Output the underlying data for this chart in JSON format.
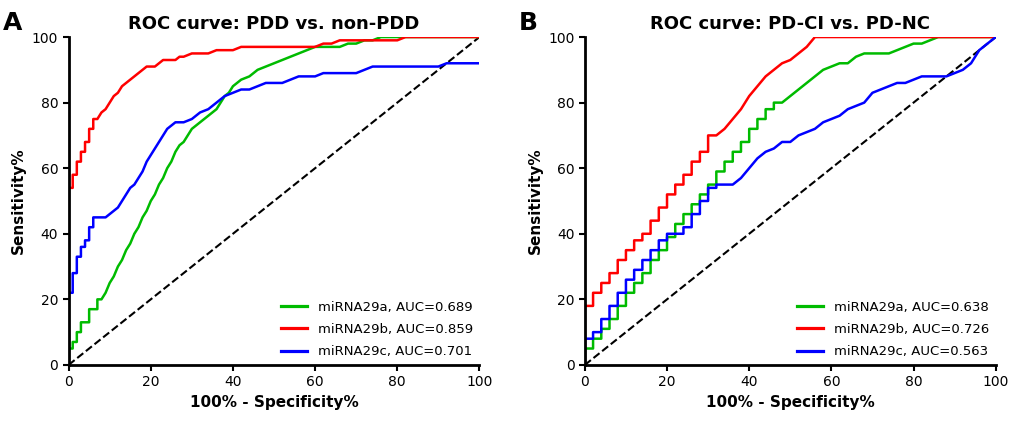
{
  "panel_A": {
    "title": "ROC curve: PDD vs. non-PDD",
    "label": "A",
    "legend": [
      {
        "label": "miRNA29a, AUC=0.689",
        "color": "#00bb00"
      },
      {
        "label": "miRNA29b, AUC=0.859",
        "color": "#ff0000"
      },
      {
        "label": "miRNA29c, AUC=0.701",
        "color": "#0000ff"
      }
    ],
    "curves": {
      "miRNA29a": {
        "color": "#00bb00",
        "x": [
          0,
          0,
          1,
          1,
          2,
          2,
          3,
          3,
          4,
          5,
          5,
          6,
          7,
          7,
          8,
          9,
          10,
          11,
          12,
          13,
          14,
          15,
          16,
          17,
          18,
          19,
          20,
          21,
          22,
          23,
          24,
          25,
          26,
          27,
          28,
          29,
          30,
          31,
          32,
          33,
          34,
          35,
          36,
          37,
          38,
          39,
          40,
          42,
          44,
          46,
          48,
          50,
          52,
          54,
          56,
          58,
          60,
          62,
          64,
          66,
          68,
          70,
          72,
          74,
          76,
          78,
          80,
          82,
          84,
          86,
          88,
          90,
          92,
          94,
          96,
          98,
          100
        ],
        "y": [
          0,
          5,
          5,
          7,
          7,
          10,
          10,
          13,
          13,
          13,
          17,
          17,
          17,
          20,
          20,
          22,
          25,
          27,
          30,
          32,
          35,
          37,
          40,
          42,
          45,
          47,
          50,
          52,
          55,
          57,
          60,
          62,
          65,
          67,
          68,
          70,
          72,
          73,
          74,
          75,
          76,
          77,
          78,
          80,
          82,
          83,
          85,
          87,
          88,
          90,
          91,
          92,
          93,
          94,
          95,
          96,
          97,
          97,
          97,
          97,
          98,
          98,
          99,
          99,
          100,
          100,
          100,
          100,
          100,
          100,
          100,
          100,
          100,
          100,
          100,
          100,
          100
        ]
      },
      "miRNA29b": {
        "color": "#ff0000",
        "x": [
          0,
          0,
          1,
          1,
          2,
          2,
          3,
          3,
          4,
          4,
          5,
          5,
          6,
          6,
          7,
          8,
          9,
          10,
          11,
          12,
          13,
          14,
          15,
          16,
          17,
          18,
          19,
          20,
          21,
          22,
          23,
          24,
          25,
          26,
          27,
          28,
          30,
          32,
          34,
          36,
          38,
          40,
          42,
          44,
          46,
          48,
          50,
          52,
          54,
          56,
          58,
          60,
          62,
          64,
          66,
          68,
          70,
          72,
          74,
          76,
          78,
          80,
          82,
          84,
          86,
          88,
          90,
          92,
          94,
          96,
          98,
          100
        ],
        "y": [
          0,
          54,
          54,
          58,
          58,
          62,
          62,
          65,
          65,
          68,
          68,
          72,
          72,
          75,
          75,
          77,
          78,
          80,
          82,
          83,
          85,
          86,
          87,
          88,
          89,
          90,
          91,
          91,
          91,
          92,
          93,
          93,
          93,
          93,
          94,
          94,
          95,
          95,
          95,
          96,
          96,
          96,
          97,
          97,
          97,
          97,
          97,
          97,
          97,
          97,
          97,
          97,
          98,
          98,
          99,
          99,
          99,
          99,
          99,
          99,
          99,
          99,
          100,
          100,
          100,
          100,
          100,
          100,
          100,
          100,
          100,
          100
        ]
      },
      "miRNA29c": {
        "color": "#0000ff",
        "x": [
          0,
          0,
          1,
          1,
          2,
          2,
          3,
          3,
          4,
          4,
          5,
          5,
          6,
          6,
          7,
          8,
          9,
          10,
          11,
          12,
          13,
          14,
          15,
          16,
          17,
          18,
          19,
          20,
          21,
          22,
          23,
          24,
          25,
          26,
          28,
          30,
          32,
          34,
          36,
          38,
          40,
          42,
          44,
          46,
          48,
          50,
          52,
          54,
          56,
          58,
          60,
          62,
          64,
          66,
          68,
          70,
          72,
          74,
          76,
          78,
          80,
          82,
          84,
          86,
          88,
          90,
          92,
          94,
          96,
          98,
          100
        ],
        "y": [
          0,
          22,
          22,
          28,
          28,
          33,
          33,
          36,
          36,
          38,
          38,
          42,
          42,
          45,
          45,
          45,
          45,
          46,
          47,
          48,
          50,
          52,
          54,
          55,
          57,
          59,
          62,
          64,
          66,
          68,
          70,
          72,
          73,
          74,
          74,
          75,
          77,
          78,
          80,
          82,
          83,
          84,
          84,
          85,
          86,
          86,
          86,
          87,
          88,
          88,
          88,
          89,
          89,
          89,
          89,
          89,
          90,
          91,
          91,
          91,
          91,
          91,
          91,
          91,
          91,
          91,
          92,
          92,
          92,
          92,
          92
        ]
      }
    }
  },
  "panel_B": {
    "title": "ROC curve: PD-CI vs. PD-NC",
    "label": "B",
    "legend": [
      {
        "label": "miRNA29a, AUC=0.638",
        "color": "#00bb00"
      },
      {
        "label": "miRNA29b, AUC=0.726",
        "color": "#ff0000"
      },
      {
        "label": "miRNA29c, AUC=0.563",
        "color": "#0000ff"
      }
    ],
    "curves": {
      "miRNA29a": {
        "color": "#00bb00",
        "x": [
          0,
          0,
          2,
          2,
          4,
          4,
          6,
          6,
          8,
          8,
          10,
          10,
          12,
          12,
          14,
          14,
          16,
          16,
          18,
          18,
          20,
          20,
          22,
          22,
          24,
          24,
          26,
          26,
          28,
          28,
          30,
          30,
          32,
          32,
          34,
          34,
          36,
          36,
          38,
          38,
          40,
          40,
          42,
          42,
          44,
          44,
          46,
          46,
          48,
          50,
          52,
          54,
          56,
          58,
          60,
          62,
          64,
          65,
          66,
          68,
          70,
          72,
          74,
          76,
          78,
          80,
          82,
          84,
          86,
          88,
          90,
          92,
          94,
          96,
          98,
          100
        ],
        "y": [
          0,
          5,
          5,
          8,
          8,
          11,
          11,
          14,
          14,
          18,
          18,
          22,
          22,
          25,
          25,
          28,
          28,
          32,
          32,
          35,
          35,
          39,
          39,
          43,
          43,
          46,
          46,
          49,
          49,
          52,
          52,
          55,
          55,
          59,
          59,
          62,
          62,
          65,
          65,
          68,
          68,
          72,
          72,
          75,
          75,
          78,
          78,
          80,
          80,
          82,
          84,
          86,
          88,
          90,
          91,
          92,
          92,
          93,
          94,
          95,
          95,
          95,
          95,
          96,
          97,
          98,
          98,
          99,
          100,
          100,
          100,
          100,
          100,
          100,
          100,
          100
        ]
      },
      "miRNA29b": {
        "color": "#ff0000",
        "x": [
          0,
          0,
          2,
          2,
          4,
          4,
          6,
          6,
          8,
          8,
          10,
          10,
          12,
          12,
          14,
          14,
          16,
          16,
          18,
          18,
          20,
          20,
          22,
          22,
          24,
          24,
          26,
          26,
          28,
          28,
          30,
          30,
          32,
          34,
          36,
          38,
          40,
          42,
          44,
          46,
          48,
          50,
          52,
          54,
          56,
          58,
          60,
          62,
          64,
          66,
          68,
          70,
          72,
          74,
          76,
          78,
          80,
          82,
          84,
          86,
          88,
          90,
          92,
          94,
          96,
          98,
          100
        ],
        "y": [
          0,
          18,
          18,
          22,
          22,
          25,
          25,
          28,
          28,
          32,
          32,
          35,
          35,
          38,
          38,
          40,
          40,
          44,
          44,
          48,
          48,
          52,
          52,
          55,
          55,
          58,
          58,
          62,
          62,
          65,
          65,
          70,
          70,
          72,
          75,
          78,
          82,
          85,
          88,
          90,
          92,
          93,
          95,
          97,
          100,
          100,
          100,
          100,
          100,
          100,
          100,
          100,
          100,
          100,
          100,
          100,
          100,
          100,
          100,
          100,
          100,
          100,
          100,
          100,
          100,
          100,
          100
        ]
      },
      "miRNA29c": {
        "color": "#0000ff",
        "x": [
          0,
          0,
          2,
          2,
          4,
          4,
          6,
          6,
          8,
          8,
          10,
          10,
          12,
          12,
          14,
          14,
          16,
          16,
          18,
          18,
          20,
          20,
          22,
          22,
          24,
          24,
          26,
          26,
          28,
          28,
          30,
          30,
          32,
          32,
          34,
          36,
          38,
          40,
          42,
          44,
          46,
          48,
          50,
          52,
          54,
          56,
          58,
          60,
          62,
          64,
          66,
          68,
          70,
          72,
          74,
          76,
          78,
          80,
          82,
          84,
          86,
          88,
          90,
          92,
          94,
          96,
          98,
          100
        ],
        "y": [
          0,
          8,
          8,
          10,
          10,
          14,
          14,
          18,
          18,
          22,
          22,
          26,
          26,
          29,
          29,
          32,
          32,
          35,
          35,
          38,
          38,
          40,
          40,
          40,
          40,
          42,
          42,
          46,
          46,
          50,
          50,
          54,
          54,
          55,
          55,
          55,
          57,
          60,
          63,
          65,
          66,
          68,
          68,
          70,
          71,
          72,
          74,
          75,
          76,
          78,
          79,
          80,
          83,
          84,
          85,
          86,
          86,
          87,
          88,
          88,
          88,
          88,
          89,
          90,
          92,
          96,
          98,
          100
        ]
      }
    }
  },
  "xlabel": "100% - Specificity%",
  "ylabel": "Sensitivity%",
  "xlim": [
    0,
    100
  ],
  "ylim": [
    0,
    100
  ],
  "xticks": [
    0,
    20,
    40,
    60,
    80,
    100
  ],
  "yticks": [
    0,
    20,
    40,
    60,
    80,
    100
  ],
  "background_color": "#ffffff",
  "linewidth": 1.8,
  "legend_loc": "lower right",
  "diagonal_color": "#000000",
  "diagonal_style": "--"
}
